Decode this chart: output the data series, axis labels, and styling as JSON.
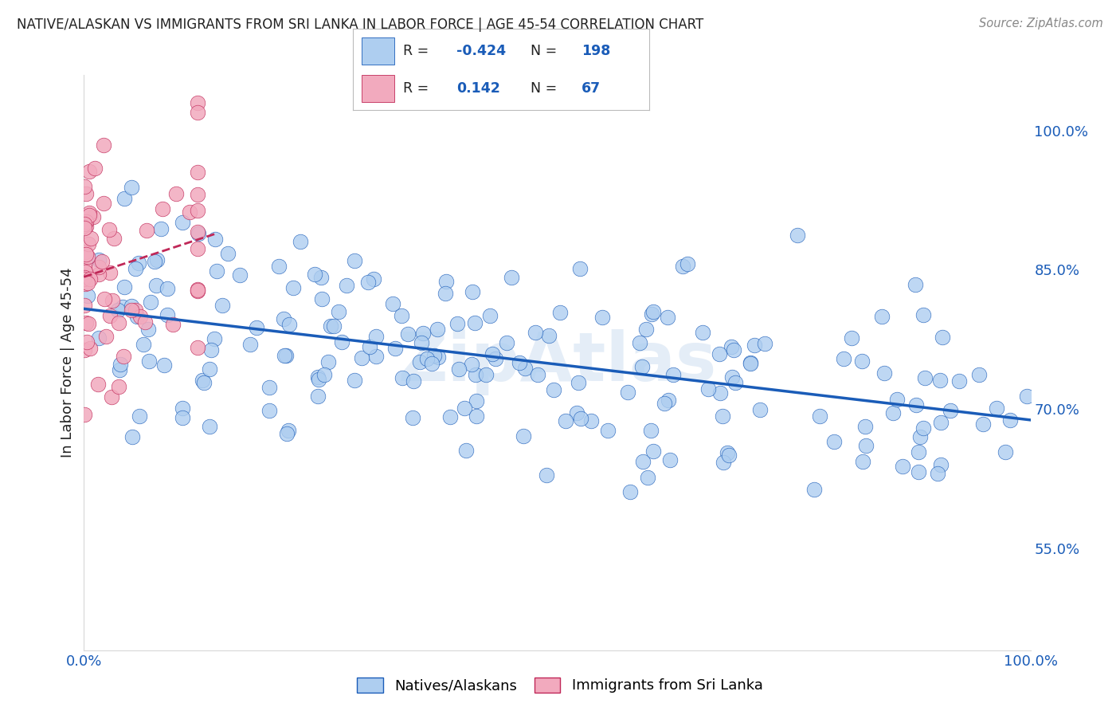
{
  "title": "NATIVE/ALASKAN VS IMMIGRANTS FROM SRI LANKA IN LABOR FORCE | AGE 45-54 CORRELATION CHART",
  "source": "Source: ZipAtlas.com",
  "ylabel": "In Labor Force | Age 45-54",
  "xlim": [
    0.0,
    1.0
  ],
  "ylim": [
    0.44,
    1.06
  ],
  "x_tick_labels": [
    "0.0%",
    "100.0%"
  ],
  "y_tick_labels": [
    "55.0%",
    "70.0%",
    "85.0%",
    "100.0%"
  ],
  "y_tick_values": [
    0.55,
    0.7,
    0.85,
    1.0
  ],
  "blue_R": -0.424,
  "blue_N": 198,
  "pink_R": 0.142,
  "pink_N": 67,
  "blue_color": "#aecef0",
  "pink_color": "#f2aabe",
  "blue_line_color": "#1a5cb8",
  "pink_line_color": "#c02858",
  "watermark": "ZipAtlas",
  "background_color": "#ffffff",
  "grid_color": "#d8d8d8",
  "axis_label_color": "#1a5cb8",
  "title_color": "#222222",
  "source_color": "#888888"
}
